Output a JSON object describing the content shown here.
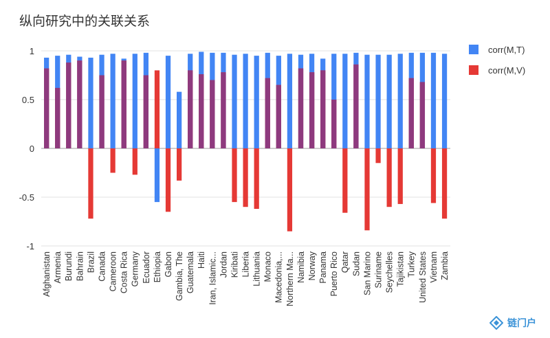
{
  "colors": {
    "t": "#4285f4",
    "v": "#e53935",
    "overlap": "#8e3a7e",
    "grid": "#e0e0e0",
    "axis": "#333333"
  },
  "watermark": {
    "text": "链门户",
    "icon": "diamond-logo-icon"
  },
  "chart_data": {
    "type": "bar",
    "title": "纵向研究中的关联关系",
    "xlabel": "",
    "ylabel": "",
    "ylim": [
      -1,
      1
    ],
    "yticks": [
      "1",
      "0.5",
      "0",
      "-0.5",
      "-1"
    ],
    "legend_position": "right",
    "grid": true,
    "series_names": [
      "corr(M,T)",
      "corr(M,V)"
    ],
    "categories": [
      "Afghanistan",
      "Armenia",
      "Burundi",
      "Bahrain",
      "Brazil",
      "Canada",
      "Cameroon",
      "Costa Rica",
      "Germany",
      "Ecuador",
      "Ethiopia",
      "Gabon",
      "Gambia, The",
      "Guatemala",
      "Haiti",
      "Iran, Islamic...",
      "Jordan",
      "Kiribati",
      "Liberia",
      "Lithuania",
      "Monaco",
      "Macedonia,...",
      "Northern Ma...",
      "Namibia",
      "Norway",
      "Panama",
      "Puerto Rico",
      "Qatar",
      "Sudan",
      "San Marino",
      "Suriname",
      "Seychelles",
      "Tajikistan",
      "Turkey",
      "United States",
      "Vietnam",
      "Zambia"
    ],
    "series": [
      {
        "name": "corr(M,T)",
        "values": [
          0.93,
          0.95,
          0.96,
          0.94,
          0.93,
          0.96,
          0.97,
          0.92,
          0.97,
          0.98,
          -0.55,
          0.95,
          0.58,
          0.97,
          0.99,
          0.98,
          0.98,
          0.96,
          0.97,
          0.95,
          0.98,
          0.95,
          0.97,
          0.96,
          0.97,
          0.92,
          0.97,
          0.97,
          0.98,
          0.96,
          0.96,
          0.96,
          0.97,
          0.98,
          0.98,
          0.98,
          0.97
        ]
      },
      {
        "name": "corr(M,V)",
        "values": [
          0.82,
          0.62,
          0.88,
          0.9,
          -0.72,
          0.75,
          -0.25,
          0.9,
          -0.27,
          0.75,
          0.8,
          -0.65,
          -0.33,
          0.8,
          0.76,
          0.7,
          0.78,
          -0.55,
          -0.6,
          -0.62,
          0.72,
          0.65,
          -0.85,
          0.82,
          0.78,
          0.8,
          0.5,
          -0.66,
          0.86,
          -0.84,
          -0.15,
          -0.6,
          -0.57,
          0.72,
          0.68,
          -0.56,
          -0.72
        ]
      }
    ]
  }
}
